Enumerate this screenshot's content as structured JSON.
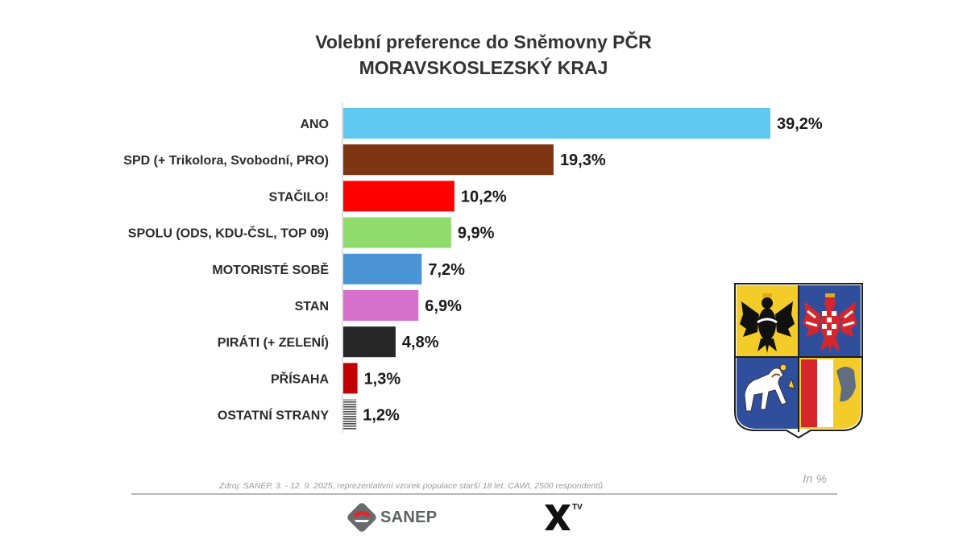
{
  "header": {
    "title": "Volební preference do Sněmovny PČR",
    "subtitle": "MORAVSKOSLEZSKÝ KRAJ"
  },
  "chart_data": {
    "type": "bar",
    "orientation": "horizontal",
    "title": "Volební preference do Sněmovny PČR",
    "subtitle": "MORAVSKOSLEZSKÝ KRAJ",
    "unit": "%",
    "categories": [
      "ANO",
      "SPD (+ Trikolora, Svobodní, PRO)",
      "STAČILO!",
      "SPOLU (ODS, KDU-ČSL, TOP 09)",
      "MOTORISTÉ SOBĚ",
      "STAN",
      "PIRÁTI (+ ZELENÍ)",
      "PŘÍSAHA",
      "OSTATNÍ STRANY"
    ],
    "values": [
      39.2,
      19.3,
      10.2,
      9.9,
      7.2,
      6.9,
      4.8,
      1.3,
      1.2
    ],
    "value_labels": [
      "39,2%",
      "19,3%",
      "10,2%",
      "9,9%",
      "7,2%",
      "6,9%",
      "4,8%",
      "1,3%",
      "1,2%"
    ],
    "colors": [
      "#5ec8f0",
      "#7e3512",
      "#ff0000",
      "#8fdc6c",
      "#4b95d6",
      "#d76fcd",
      "#272727",
      "#c00000",
      "#555555"
    ],
    "xlim": [
      0,
      39.2
    ],
    "grid": false,
    "legend": false
  },
  "footer": {
    "source": "Zdroj: SANEP, 3. - 12. 9. 2025, reprezentativní vzorek populace starší 18 let, CAWI, 2500 respondentů",
    "unit_note": "In %",
    "sanep_logo_text": "SANEP",
    "xtv_logo_text": "TV"
  },
  "icons": {
    "sanep_logo": "sanep-logo-icon",
    "xtv_logo": "xtv-logo-icon",
    "crest": "moravskoslezsky-crest-icon"
  }
}
